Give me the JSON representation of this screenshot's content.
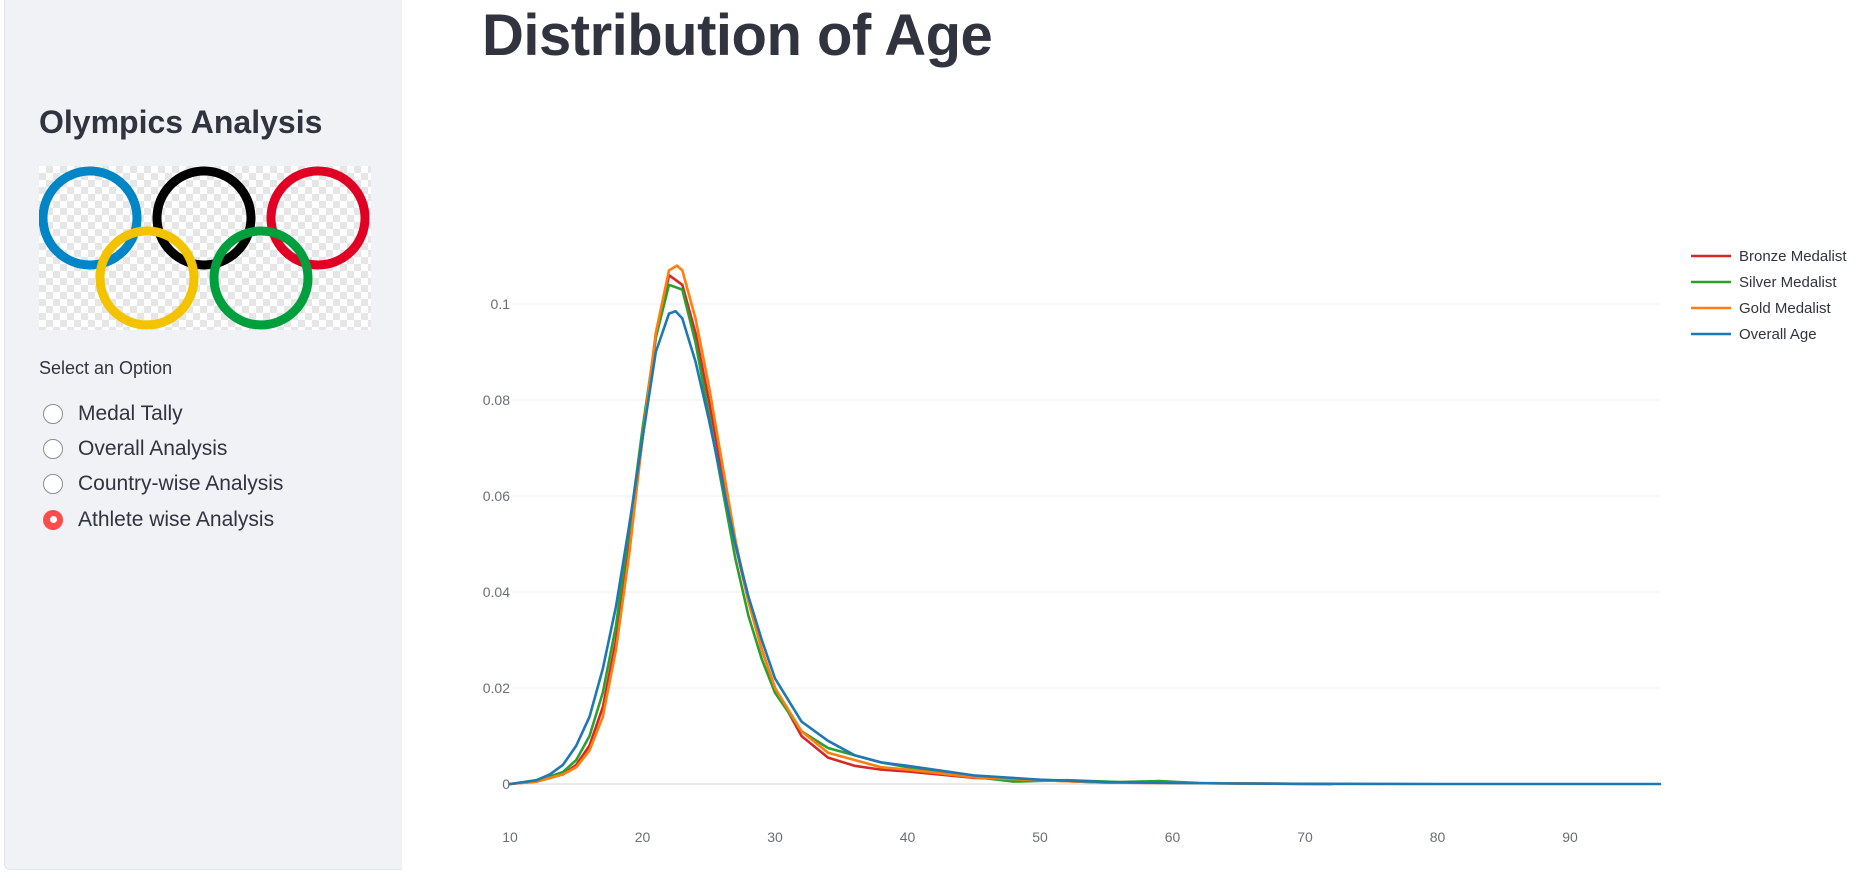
{
  "sidebar": {
    "title": "Olympics Analysis",
    "logo_icon": "olympic-rings-icon",
    "ring_colors": [
      "#0085c7",
      "#000000",
      "#df0024",
      "#f4c300",
      "#009f3d"
    ],
    "radio_label": "Select an Option",
    "options": [
      {
        "label": "Medal Tally",
        "selected": false
      },
      {
        "label": "Overall Analysis",
        "selected": false
      },
      {
        "label": "Country-wise Analysis",
        "selected": false
      },
      {
        "label": "Athlete wise Analysis",
        "selected": true
      }
    ],
    "accent_color": "#ff4b4b"
  },
  "main": {
    "title": "Distribution of Age"
  },
  "chart_data": {
    "type": "line",
    "title": "",
    "xlabel": "",
    "ylabel": "",
    "xlim": [
      10,
      97
    ],
    "ylim": [
      0,
      0.1
    ],
    "x_ticks": [
      10,
      20,
      30,
      40,
      50,
      60,
      70,
      80,
      90
    ],
    "x_tick_labels": [
      "10",
      "20",
      "30",
      "40",
      "50",
      "60",
      "70",
      "80",
      "90"
    ],
    "y_ticks": [
      0,
      0.02,
      0.04,
      0.06,
      0.08,
      0.1
    ],
    "y_tick_labels": [
      "0",
      "0.02",
      "0.04",
      "0.06",
      "0.08",
      "0.1"
    ],
    "grid": true,
    "legend_position": "top-right",
    "series": [
      {
        "name": "Bronze Medalist",
        "color": "#d62728",
        "x": [
          10,
          12,
          14,
          15,
          16,
          17,
          18,
          19,
          20,
          21,
          22,
          23,
          24,
          25,
          26,
          27,
          28,
          29,
          30,
          32,
          34,
          36,
          38,
          40,
          45,
          50,
          55,
          60,
          65,
          72
        ],
        "y": [
          0,
          0.0005,
          0.002,
          0.004,
          0.008,
          0.016,
          0.03,
          0.05,
          0.072,
          0.093,
          0.106,
          0.104,
          0.094,
          0.08,
          0.065,
          0.05,
          0.038,
          0.028,
          0.02,
          0.01,
          0.0055,
          0.0038,
          0.003,
          0.0026,
          0.0013,
          0.0008,
          0.0003,
          0.0002,
          0.0001,
          0
        ]
      },
      {
        "name": "Silver Medalist",
        "color": "#2ca02c",
        "x": [
          10,
          12,
          14,
          15,
          16,
          17,
          18,
          19,
          20,
          21,
          22,
          23,
          24,
          25,
          26,
          27,
          28,
          29,
          30,
          32,
          34,
          36,
          38,
          40,
          45,
          48,
          52,
          56,
          59,
          62,
          66,
          72
        ],
        "y": [
          0,
          0.0006,
          0.0025,
          0.005,
          0.01,
          0.019,
          0.033,
          0.053,
          0.074,
          0.093,
          0.104,
          0.103,
          0.092,
          0.077,
          0.062,
          0.047,
          0.035,
          0.026,
          0.019,
          0.011,
          0.0075,
          0.006,
          0.0045,
          0.0035,
          0.0015,
          0.0005,
          0.0008,
          0.0004,
          0.0006,
          0.0002,
          0.0001,
          0
        ]
      },
      {
        "name": "Gold Medalist",
        "color": "#ff7f0e",
        "x": [
          10,
          12,
          14,
          15,
          16,
          17,
          18,
          19,
          20,
          21,
          22,
          22.6,
          23,
          24,
          25,
          26,
          27,
          28,
          29,
          30,
          32,
          34,
          36,
          38,
          40,
          45,
          50,
          55,
          60,
          65,
          72
        ],
        "y": [
          0,
          0.0005,
          0.002,
          0.0035,
          0.007,
          0.014,
          0.028,
          0.048,
          0.072,
          0.094,
          0.107,
          0.108,
          0.107,
          0.097,
          0.083,
          0.067,
          0.051,
          0.038,
          0.028,
          0.02,
          0.011,
          0.0065,
          0.005,
          0.0035,
          0.003,
          0.0014,
          0.0008,
          0.0003,
          0.0002,
          0.0001,
          0
        ]
      },
      {
        "name": "Overall Age",
        "color": "#1f77b4",
        "x": [
          10,
          12,
          13,
          14,
          15,
          16,
          17,
          18,
          19,
          20,
          21,
          22,
          22.5,
          23,
          24,
          25,
          26,
          27,
          28,
          29,
          30,
          32,
          34,
          36,
          38,
          40,
          45,
          50,
          55,
          60,
          65,
          70,
          80,
          90,
          97
        ],
        "y": [
          0,
          0.0008,
          0.002,
          0.004,
          0.008,
          0.014,
          0.024,
          0.037,
          0.054,
          0.072,
          0.09,
          0.098,
          0.0985,
          0.097,
          0.088,
          0.076,
          0.063,
          0.05,
          0.039,
          0.03,
          0.022,
          0.013,
          0.009,
          0.006,
          0.0045,
          0.0038,
          0.0018,
          0.0009,
          0.0004,
          0.0002,
          0.0001,
          5e-05,
          0,
          0,
          0
        ]
      }
    ]
  }
}
